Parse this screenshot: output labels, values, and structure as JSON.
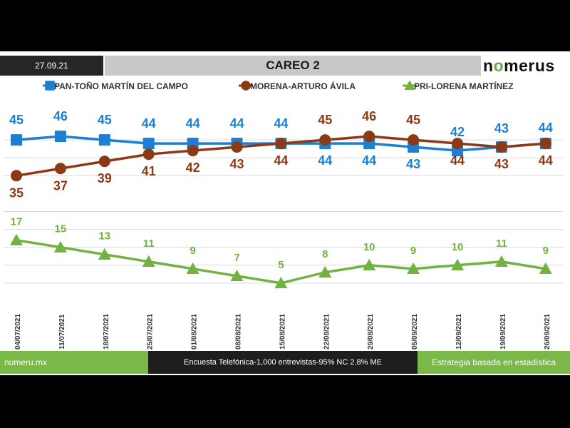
{
  "header": {
    "date": "27.09.21",
    "title": "CAREO 2",
    "logo_prefix": "n",
    "logo_o": "o",
    "logo_suffix": "merus"
  },
  "footer": {
    "site": "numeru.mx",
    "survey": "Encuesta Telefónica-1,000 entrevistas-95% NC 2.8% ME",
    "tagline": "Estrategia basada en estadística"
  },
  "colors": {
    "pan": "#1c7fd1",
    "morena": "#8b3a16",
    "pri": "#72b243",
    "grid": "#d9d9d9"
  },
  "chart_data": {
    "type": "line",
    "title": "CAREO 2",
    "xlabel": "",
    "ylabel": "",
    "ylim": [
      0,
      50
    ],
    "grid": true,
    "legend": "top",
    "categories": [
      "04/07/2021",
      "11/07/2021",
      "18/07/2021",
      "25/07/2021",
      "01/08/2021",
      "08/08/2021",
      "15/08/2021",
      "22/08/2021",
      "29/08/2021",
      "05/09/2021",
      "12/09/2021",
      "19/09/2021",
      "26/09/2021"
    ],
    "series": [
      {
        "name": "PAN-TOÑO MARTÍN DEL CAMPO",
        "key": "pan",
        "marker": "square",
        "values": [
          45,
          46,
          45,
          44,
          44,
          44,
          44,
          44,
          44,
          43,
          42,
          43,
          44
        ]
      },
      {
        "name": "MORENA-ARTURO ÁVILA",
        "key": "morena",
        "marker": "circle",
        "values": [
          35,
          37,
          39,
          41,
          42,
          43,
          44,
          45,
          46,
          45,
          44,
          43,
          44
        ]
      },
      {
        "name": "PRI-LORENA MARTÍNEZ",
        "key": "pri",
        "marker": "triangle",
        "values": [
          17,
          15,
          13,
          11,
          9,
          7,
          5,
          8,
          10,
          9,
          10,
          11,
          9
        ]
      }
    ]
  }
}
